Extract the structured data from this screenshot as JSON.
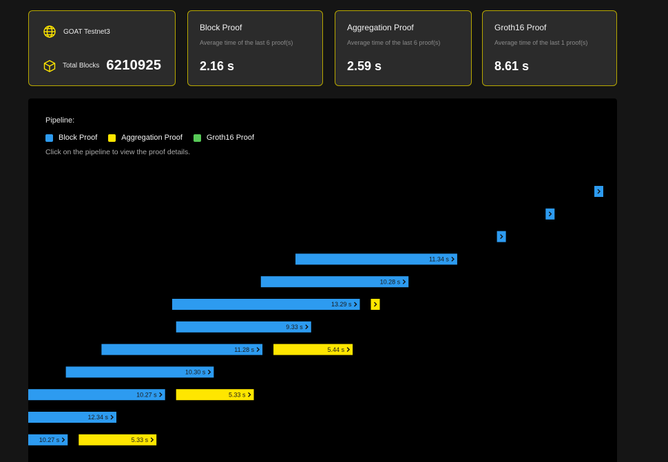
{
  "network": {
    "name": "GOAT Testnet3",
    "icon": "globe-icon"
  },
  "total_blocks": {
    "label": "Total Blocks",
    "value": "6210925",
    "icon": "cube-icon"
  },
  "stats": [
    {
      "title": "Block Proof",
      "subtitle": "Average time of the last 6 proof(s)",
      "value": "2.16 s"
    },
    {
      "title": "Aggregation Proof",
      "subtitle": "Average time of the last 6 proof(s)",
      "value": "2.59 s"
    },
    {
      "title": "Groth16 Proof",
      "subtitle": "Average time of the last 1 proof(s)",
      "value": "8.61 s"
    }
  ],
  "pipeline": {
    "title": "Pipeline:",
    "hint": "Click on the pipeline to view the proof details.",
    "legend": [
      {
        "label": "Block Proof",
        "color": "#2d9bf0"
      },
      {
        "label": "Aggregation Proof",
        "color": "#ffe600"
      },
      {
        "label": "Groth16 Proof",
        "color": "#57c957"
      }
    ]
  },
  "chart_data": {
    "type": "gantt",
    "rows": [
      {
        "block": {
          "duration": null,
          "label": ""
        },
        "aggregation": null
      },
      {
        "block": {
          "duration": null,
          "label": ""
        },
        "aggregation": null
      },
      {
        "block": {
          "duration": null,
          "label": ""
        },
        "aggregation": null
      },
      {
        "block": {
          "duration": 11.34,
          "label": "11.34 s"
        },
        "aggregation": null
      },
      {
        "block": {
          "duration": 10.28,
          "label": "10.28 s"
        },
        "aggregation": null
      },
      {
        "block": {
          "duration": 13.29,
          "label": "13.29 s"
        },
        "aggregation": {
          "duration": null,
          "label": ""
        }
      },
      {
        "block": {
          "duration": 9.33,
          "label": "9.33 s"
        },
        "aggregation": null
      },
      {
        "block": {
          "duration": 11.28,
          "label": "11.28 s"
        },
        "aggregation": {
          "duration": 5.44,
          "label": "5.44 s"
        }
      },
      {
        "block": {
          "duration": 10.3,
          "label": "10.30 s"
        },
        "aggregation": null
      },
      {
        "block": {
          "duration": 10.27,
          "label": "10.27 s"
        },
        "aggregation": {
          "duration": 5.33,
          "label": "5.33 s"
        }
      },
      {
        "block": {
          "duration": 12.34,
          "label": "12.34 s"
        },
        "aggregation": null
      },
      {
        "block": {
          "duration": 10.27,
          "label": "10.27 s"
        },
        "aggregation": {
          "duration": 5.33,
          "label": "5.33 s"
        }
      }
    ]
  }
}
